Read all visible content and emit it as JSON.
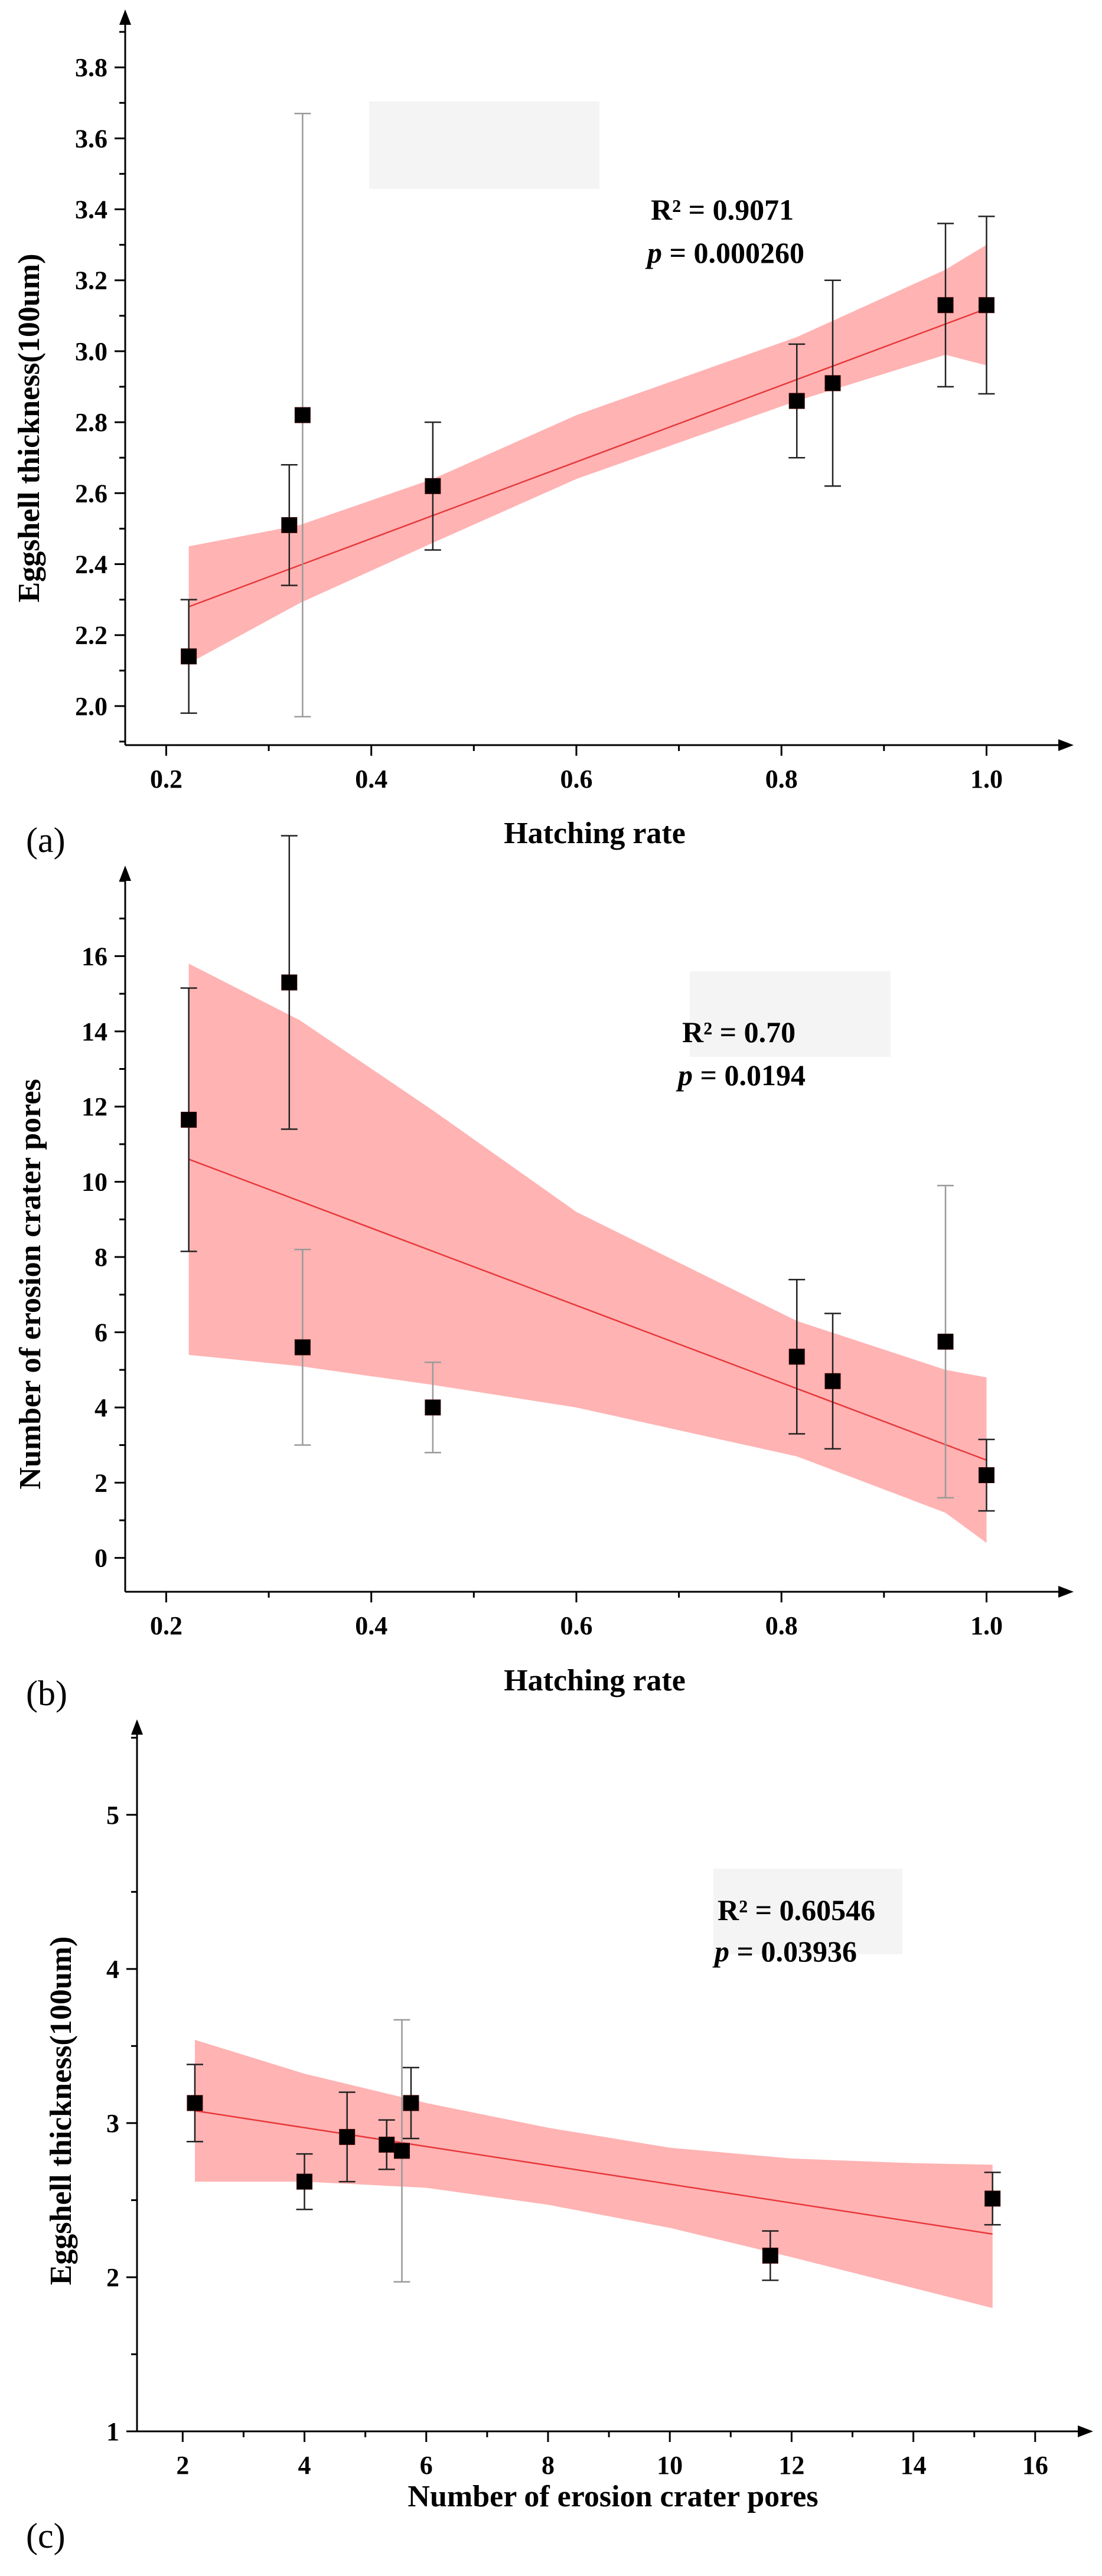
{
  "colors": {
    "band": "#ffb3b3",
    "fit_line": "#e8393b",
    "marker": "#000000",
    "marker_tint": "#3a0000",
    "error_bar": "#222222",
    "faint_error_bar": "#9a9a9a",
    "label_bg": "#f4f4f4"
  },
  "chart_data": [
    {
      "type": "scatter",
      "panel_label": "(a)",
      "xlabel": "Hatching rate",
      "ylabel": "Eggshell thickness(100um)",
      "xlim": [
        0.16,
        1.07
      ],
      "ylim": [
        1.89,
        3.92
      ],
      "x_ticks": [
        0.2,
        0.4,
        0.6,
        0.8,
        1.0
      ],
      "x_tick_labels": [
        "0.2",
        "0.4",
        "0.6",
        "0.8",
        "1.0"
      ],
      "y_ticks": [
        2.0,
        2.2,
        2.4,
        2.6,
        2.8,
        3.0,
        3.2,
        3.4,
        3.6,
        3.8
      ],
      "y_tick_labels": [
        "2.0",
        "2.2",
        "2.4",
        "2.6",
        "2.8",
        "3.0",
        "3.2",
        "3.4",
        "3.6",
        "3.8"
      ],
      "stats": {
        "r2_label": "R² = 0.9071",
        "p_italic": "p",
        "p_rest": " = 0.000260"
      },
      "fit": {
        "x": [
          0.222,
          1.0
        ],
        "y": [
          2.28,
          3.12
        ]
      },
      "band": {
        "x": [
          0.222,
          0.33,
          0.46,
          0.6,
          0.815,
          0.96,
          1.0
        ],
        "lower": [
          2.12,
          2.29,
          2.46,
          2.64,
          2.86,
          2.99,
          2.96
        ],
        "upper": [
          2.45,
          2.51,
          2.64,
          2.82,
          3.04,
          3.23,
          3.3
        ]
      },
      "series": [
        {
          "name": "data",
          "points": [
            {
              "x": 0.222,
              "y": 2.14,
              "err": 0.16
            },
            {
              "x": 0.32,
              "y": 2.51,
              "err": 0.17
            },
            {
              "x": 0.333,
              "y": 2.82,
              "err": 0.85,
              "faint": true
            },
            {
              "x": 0.46,
              "y": 2.62,
              "err": 0.18
            },
            {
              "x": 0.815,
              "y": 2.86,
              "err": 0.16
            },
            {
              "x": 0.85,
              "y": 2.91,
              "err": 0.29
            },
            {
              "x": 0.96,
              "y": 3.13,
              "err": 0.23
            },
            {
              "x": 1.0,
              "y": 3.13,
              "err": 0.25
            }
          ]
        }
      ]
    },
    {
      "type": "scatter",
      "panel_label": "(b)",
      "xlabel": "Hatching rate",
      "ylabel": "Number of erosion crater pores",
      "xlim": [
        0.16,
        1.07
      ],
      "ylim": [
        -0.9,
        18.0
      ],
      "x_ticks": [
        0.2,
        0.4,
        0.6,
        0.8,
        1.0
      ],
      "x_tick_labels": [
        "0.2",
        "0.4",
        "0.6",
        "0.8",
        "1.0"
      ],
      "y_ticks": [
        0,
        2,
        4,
        6,
        8,
        10,
        12,
        14,
        16
      ],
      "y_tick_labels": [
        "0",
        "2",
        "4",
        "6",
        "8",
        "10",
        "12",
        "14",
        "16"
      ],
      "stats": {
        "r2_label": "R² = 0.70",
        "p_italic": "p",
        "p_rest": " = 0.0194"
      },
      "fit": {
        "x": [
          0.222,
          1.0
        ],
        "y": [
          10.6,
          2.6
        ]
      },
      "band": {
        "x": [
          0.222,
          0.33,
          0.46,
          0.6,
          0.815,
          0.96,
          1.0
        ],
        "lower": [
          5.4,
          5.1,
          4.6,
          4.0,
          2.7,
          1.2,
          0.4
        ],
        "upper": [
          15.8,
          14.3,
          11.9,
          9.2,
          6.3,
          5.0,
          4.8
        ]
      },
      "series": [
        {
          "name": "data",
          "points": [
            {
              "x": 0.222,
              "y": 11.65,
              "err": 3.5
            },
            {
              "x": 0.32,
              "y": 15.3,
              "err": 3.9
            },
            {
              "x": 0.333,
              "y": 5.6,
              "err": 2.6,
              "faint": true
            },
            {
              "x": 0.46,
              "y": 4.0,
              "err": 1.2,
              "faint": true
            },
            {
              "x": 0.815,
              "y": 5.35,
              "err": 2.05
            },
            {
              "x": 0.85,
              "y": 4.7,
              "err": 1.8
            },
            {
              "x": 0.96,
              "y": 5.75,
              "err": 4.15,
              "faint": true
            },
            {
              "x": 1.0,
              "y": 2.2,
              "err": 0.95
            }
          ]
        }
      ]
    },
    {
      "type": "scatter",
      "panel_label": "(c)",
      "xlabel": "Number of erosion crater pores",
      "ylabel": "Eggshell thickness(100um)",
      "xlim": [
        1.25,
        16.7
      ],
      "ylim": [
        1.0,
        5.52
      ],
      "x_ticks": [
        2,
        4,
        6,
        8,
        10,
        12,
        14,
        16
      ],
      "x_tick_labels": [
        "2",
        "4",
        "6",
        "8",
        "10",
        "12",
        "14",
        "16"
      ],
      "y_ticks": [
        1,
        2,
        3,
        4,
        5
      ],
      "y_tick_labels": [
        "1",
        "2",
        "3",
        "4",
        "5"
      ],
      "stats": {
        "r2_label": "R² = 0.60546",
        "p_italic": "p",
        "p_rest": " = 0.03936"
      },
      "fit": {
        "x": [
          2.2,
          15.3
        ],
        "y": [
          3.08,
          2.28
        ]
      },
      "band": {
        "x": [
          2.2,
          4.0,
          6.0,
          8.0,
          10.0,
          12.0,
          14.0,
          15.3
        ],
        "lower": [
          2.62,
          2.62,
          2.58,
          2.47,
          2.32,
          2.13,
          1.93,
          1.8
        ],
        "upper": [
          3.54,
          3.32,
          3.13,
          2.97,
          2.84,
          2.77,
          2.74,
          2.73
        ]
      },
      "series": [
        {
          "name": "data",
          "points": [
            {
              "x": 2.2,
              "y": 3.13,
              "err": 0.25
            },
            {
              "x": 4.0,
              "y": 2.62,
              "err": 0.18
            },
            {
              "x": 4.7,
              "y": 2.91,
              "err": 0.29
            },
            {
              "x": 5.35,
              "y": 2.86,
              "err": 0.16
            },
            {
              "x": 5.6,
              "y": 2.82,
              "err": 0.85,
              "faint": true
            },
            {
              "x": 5.75,
              "y": 3.13,
              "err": 0.23
            },
            {
              "x": 11.65,
              "y": 2.14,
              "err": 0.16
            },
            {
              "x": 15.3,
              "y": 2.51,
              "err": 0.17
            }
          ]
        }
      ]
    }
  ]
}
